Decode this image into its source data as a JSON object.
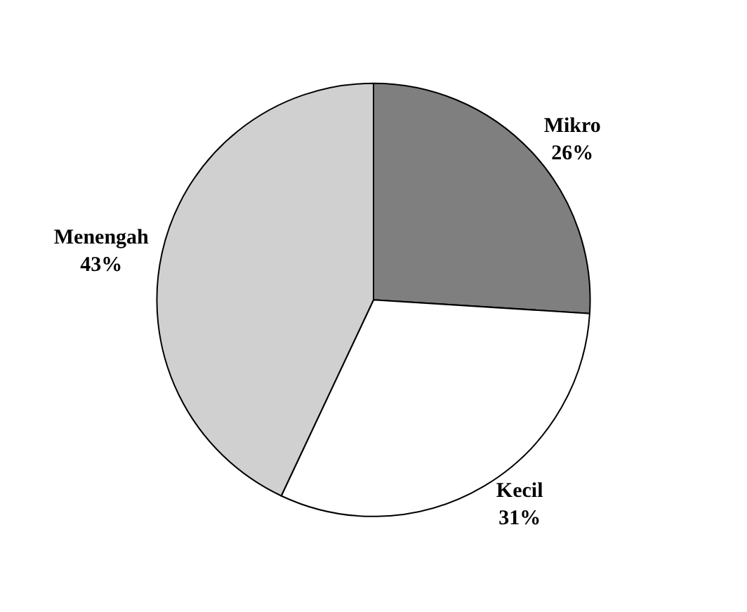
{
  "chart_data": {
    "type": "pie",
    "categories": [
      "Mikro",
      "Kecil",
      "Menengah"
    ],
    "values": [
      26,
      31,
      43
    ],
    "value_labels": [
      "26%",
      "31%",
      "43%"
    ],
    "colors": [
      "#7f7f7f",
      "#ffffff",
      "#d0d0d0"
    ],
    "legend": false
  }
}
